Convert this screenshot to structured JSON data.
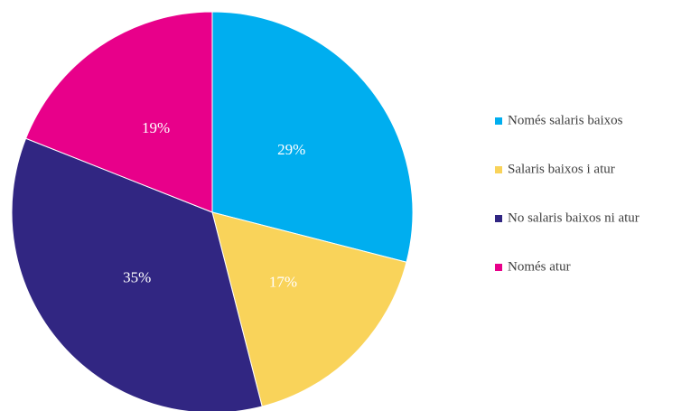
{
  "chart_data": {
    "type": "pie",
    "categories": [
      "Només salaris baixos",
      "Salaris baixos i atur",
      "No salaris baixos ni atur",
      "Només atur"
    ],
    "values": [
      29,
      17,
      35,
      19
    ],
    "value_labels": [
      "29%",
      "17%",
      "35%",
      "19%"
    ],
    "colors": [
      "#00aeef",
      "#f9d35a",
      "#312682",
      "#e8008a"
    ],
    "legend": "right"
  }
}
